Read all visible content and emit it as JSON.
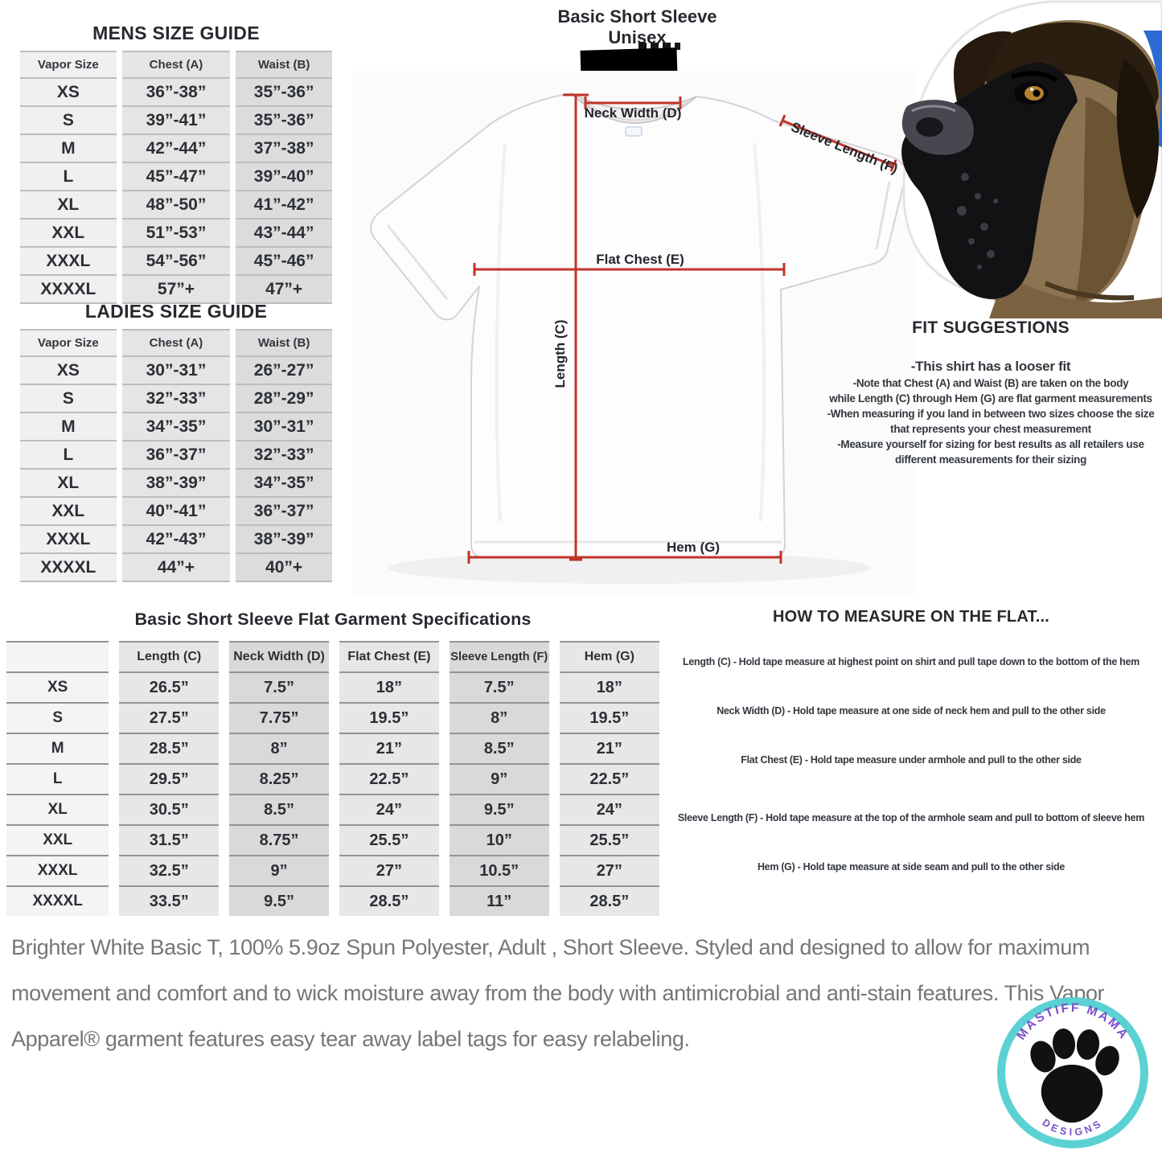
{
  "mens_size_guide": {
    "title": "MENS SIZE GUIDE",
    "columns": [
      "Vapor Size",
      "Chest (A)",
      "Waist (B)"
    ],
    "rows": [
      [
        "XS",
        "36”-38”",
        "35”-36”"
      ],
      [
        "S",
        "39”-41”",
        "35”-36”"
      ],
      [
        "M",
        "42”-44”",
        "37”-38”"
      ],
      [
        "L",
        "45”-47”",
        "39”-40”"
      ],
      [
        "XL",
        "48”-50”",
        "41”-42”"
      ],
      [
        "XXL",
        "51”-53”",
        "43”-44”"
      ],
      [
        "XXXL",
        "54”-56”",
        "45”-46”"
      ],
      [
        "XXXXL",
        "57”+",
        "47”+"
      ]
    ]
  },
  "ladies_size_guide": {
    "title": "LADIES SIZE GUIDE",
    "columns": [
      "Vapor Size",
      "Chest (A)",
      "Waist (B)"
    ],
    "rows": [
      [
        "XS",
        "30”-31”",
        "26”-27”"
      ],
      [
        "S",
        "32”-33”",
        "28”-29”"
      ],
      [
        "M",
        "34”-35”",
        "30”-31”"
      ],
      [
        "L",
        "36”-37”",
        "32”-33”"
      ],
      [
        "XL",
        "38”-39”",
        "34”-35”"
      ],
      [
        "XXL",
        "40”-41”",
        "36”-37”"
      ],
      [
        "XXXL",
        "42”-43”",
        "38”-39”"
      ],
      [
        "XXXXL",
        "44”+",
        "40”+"
      ]
    ]
  },
  "diagram": {
    "title_line1": "Basic Short Sleeve",
    "title_line2": "Unisex",
    "labels": {
      "neck_width": "Neck Width (D)",
      "sleeve_length": "Sleeve Length (F)",
      "flat_chest": "Flat Chest (E)",
      "length": "Length (C)",
      "hem": "Hem (G)"
    }
  },
  "fit_suggestions": {
    "title": "FIT SUGGESTIONS",
    "lines": [
      "-This shirt has a looser fit",
      "-Note that Chest (A) and Waist (B) are taken on the body",
      "while Length (C) through Hem (G) are flat garment measurements",
      "-When measuring if you land in between two sizes choose the size",
      "that represents your chest measurement",
      "-Measure yourself for sizing for best results as all retailers use",
      "different measurements for their sizing"
    ]
  },
  "flat_specs": {
    "title": "Basic Short Sleeve Flat Garment Specifications",
    "columns": [
      "",
      "Length (C)",
      "Neck Width (D)",
      "Flat Chest (E)",
      "Sleeve Length (F)",
      "Hem (G)"
    ],
    "rows": [
      [
        "XS",
        "26.5”",
        "7.5”",
        "18”",
        "7.5”",
        "18”"
      ],
      [
        "S",
        "27.5”",
        "7.75”",
        "19.5”",
        "8”",
        "19.5”"
      ],
      [
        "M",
        "28.5”",
        "8”",
        "21”",
        "8.5”",
        "21”"
      ],
      [
        "L",
        "29.5”",
        "8.25”",
        "22.5”",
        "9”",
        "22.5”"
      ],
      [
        "XL",
        "30.5”",
        "8.5”",
        "24”",
        "9.5”",
        "24”"
      ],
      [
        "XXL",
        "31.5”",
        "8.75”",
        "25.5”",
        "10”",
        "25.5”"
      ],
      [
        "XXXL",
        "32.5”",
        "9”",
        "27”",
        "10.5”",
        "27”"
      ],
      [
        "XXXXL",
        "33.5”",
        "9.5”",
        "28.5”",
        "11”",
        "28.5”"
      ]
    ]
  },
  "how_to_measure": {
    "title": "HOW TO MEASURE ON THE FLAT...",
    "items": [
      "Length (C) - Hold tape measure at highest point on shirt and pull tape down to the bottom of the hem",
      "Neck Width (D) - Hold tape measure at one side of neck hem and pull to the other side",
      "Flat Chest (E) - Hold tape measure under armhole and pull to the other side",
      "Sleeve Length (F) - Hold tape measure at the top of the armhole seam and pull to bottom of sleeve hem",
      "Hem (G) - Hold tape measure at side seam and pull to the other side"
    ]
  },
  "description": "Brighter White Basic T, 100% 5.9oz Spun Polyester, Adult , Short Sleeve. Styled and designed to allow for maximum movement and comfort and to wick moisture away from the body with antimicrobial and anti-stain features. This Vapor Apparel® garment features easy tear away label tags for easy relabeling.",
  "logo": {
    "top_text": "MASTIFF MAMA",
    "bottom_text": "DESIGNS"
  },
  "colors": {
    "measure_line": "#c1332a",
    "table_text": "#2c3036",
    "accent_teal": "#5bd1d3",
    "accent_purple": "#7c4dc8"
  }
}
